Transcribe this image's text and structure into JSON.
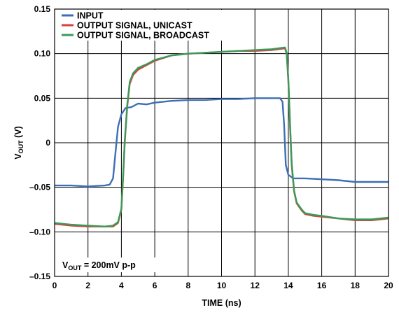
{
  "chart_data": {
    "type": "line",
    "xlabel": "TIME (ns)",
    "ylabel": {
      "main": "V",
      "sub": "OUT",
      "suffix": " (V)"
    },
    "xlim": [
      0,
      20
    ],
    "ylim": [
      -0.15,
      0.15
    ],
    "x_ticks": [
      "0",
      "2",
      "4",
      "6",
      "8",
      "10",
      "12",
      "14",
      "16",
      "18",
      "20"
    ],
    "y_ticks": [
      "–0.15",
      "–0.10",
      "–0.05",
      "0",
      "0.05",
      "0.10",
      "0.15"
    ],
    "grid": true,
    "legend_position": "top-left",
    "annotation": {
      "main": "V",
      "sub": "OUT",
      "suffix": " = 200mV p-p"
    },
    "series": [
      {
        "name": "INPUT",
        "color": "#3e6fb6",
        "points": [
          [
            0,
            -0.048
          ],
          [
            1,
            -0.048
          ],
          [
            2,
            -0.049
          ],
          [
            3,
            -0.048
          ],
          [
            3.3,
            -0.047
          ],
          [
            3.5,
            -0.04
          ],
          [
            3.65,
            -0.01
          ],
          [
            3.8,
            0.018
          ],
          [
            4,
            0.032
          ],
          [
            4.25,
            0.039
          ],
          [
            4.6,
            0.04
          ],
          [
            5,
            0.044
          ],
          [
            5.5,
            0.043
          ],
          [
            6,
            0.045
          ],
          [
            7,
            0.047
          ],
          [
            8,
            0.048
          ],
          [
            9,
            0.048
          ],
          [
            10,
            0.049
          ],
          [
            11,
            0.049
          ],
          [
            12,
            0.05
          ],
          [
            13,
            0.05
          ],
          [
            13.5,
            0.05
          ],
          [
            13.65,
            0.046
          ],
          [
            13.75,
            0.02
          ],
          [
            13.85,
            -0.025
          ],
          [
            14,
            -0.036
          ],
          [
            14.3,
            -0.04
          ],
          [
            15,
            -0.04
          ],
          [
            16,
            -0.041
          ],
          [
            17,
            -0.042
          ],
          [
            18,
            -0.044
          ],
          [
            19,
            -0.044
          ],
          [
            20,
            -0.044
          ]
        ]
      },
      {
        "name": "OUTPUT SIGNAL, UNICAST",
        "color": "#d9413d",
        "points": [
          [
            0,
            -0.091
          ],
          [
            1,
            -0.093
          ],
          [
            2,
            -0.094
          ],
          [
            3,
            -0.094
          ],
          [
            3.5,
            -0.094
          ],
          [
            3.8,
            -0.09
          ],
          [
            4,
            -0.075
          ],
          [
            4.1,
            -0.04
          ],
          [
            4.2,
            0
          ],
          [
            4.35,
            0.04
          ],
          [
            4.5,
            0.066
          ],
          [
            4.7,
            0.076
          ],
          [
            5,
            0.082
          ],
          [
            5.5,
            0.087
          ],
          [
            6,
            0.092
          ],
          [
            7,
            0.098
          ],
          [
            8,
            0.1
          ],
          [
            9,
            0.101
          ],
          [
            10,
            0.102
          ],
          [
            11,
            0.103
          ],
          [
            12,
            0.103
          ],
          [
            13,
            0.104
          ],
          [
            13.8,
            0.106
          ],
          [
            13.9,
            0.1
          ],
          [
            14,
            0.07
          ],
          [
            14.1,
            0.02
          ],
          [
            14.2,
            -0.025
          ],
          [
            14.35,
            -0.055
          ],
          [
            14.5,
            -0.068
          ],
          [
            14.8,
            -0.076
          ],
          [
            15,
            -0.08
          ],
          [
            15.5,
            -0.082
          ],
          [
            16,
            -0.083
          ],
          [
            17,
            -0.085
          ],
          [
            18,
            -0.087
          ],
          [
            19,
            -0.087
          ],
          [
            20,
            -0.085
          ]
        ]
      },
      {
        "name": "OUTPUT SIGNAL, BROADCAST",
        "color": "#3a9a5a",
        "points": [
          [
            0,
            -0.09
          ],
          [
            1,
            -0.092
          ],
          [
            2,
            -0.093
          ],
          [
            3,
            -0.094
          ],
          [
            3.5,
            -0.093
          ],
          [
            3.8,
            -0.089
          ],
          [
            4,
            -0.074
          ],
          [
            4.1,
            -0.038
          ],
          [
            4.2,
            0.002
          ],
          [
            4.35,
            0.042
          ],
          [
            4.5,
            0.068
          ],
          [
            4.7,
            0.078
          ],
          [
            5,
            0.084
          ],
          [
            5.5,
            0.088
          ],
          [
            6,
            0.093
          ],
          [
            7,
            0.098
          ],
          [
            8,
            0.1
          ],
          [
            9,
            0.101
          ],
          [
            10,
            0.102
          ],
          [
            11,
            0.103
          ],
          [
            12,
            0.104
          ],
          [
            13,
            0.105
          ],
          [
            13.8,
            0.107
          ],
          [
            13.9,
            0.101
          ],
          [
            14,
            0.072
          ],
          [
            14.1,
            0.022
          ],
          [
            14.2,
            -0.023
          ],
          [
            14.35,
            -0.054
          ],
          [
            14.5,
            -0.067
          ],
          [
            14.8,
            -0.075
          ],
          [
            15,
            -0.079
          ],
          [
            15.5,
            -0.081
          ],
          [
            16,
            -0.082
          ],
          [
            17,
            -0.085
          ],
          [
            18,
            -0.086
          ],
          [
            19,
            -0.086
          ],
          [
            20,
            -0.084
          ]
        ]
      }
    ]
  }
}
